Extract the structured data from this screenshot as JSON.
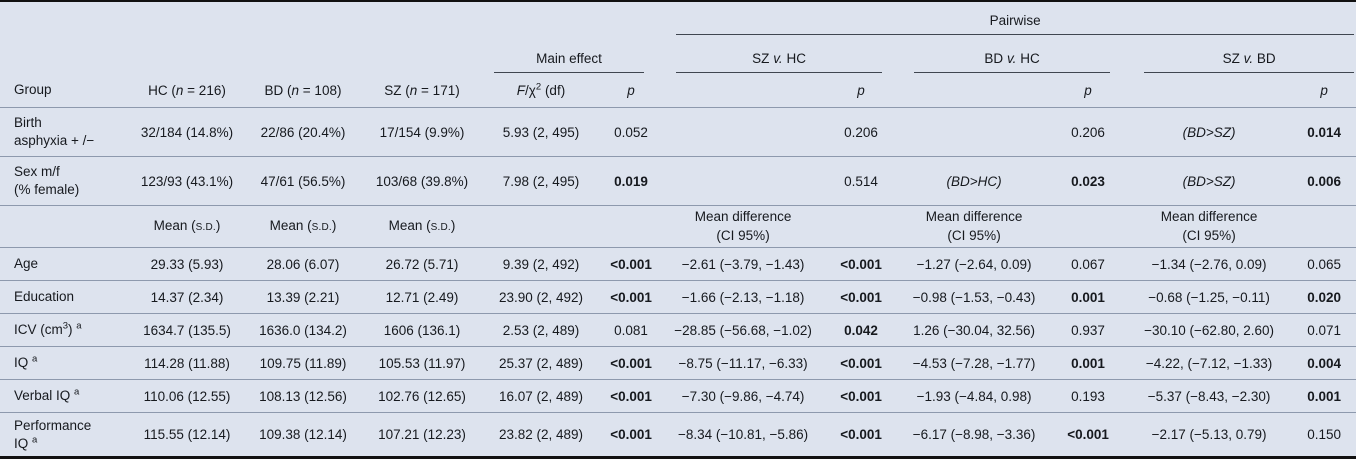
{
  "colors": {
    "table_bg": "#dde3ee",
    "row_separator": "#8d99ad",
    "heavy_rule": "#111111",
    "header_underline": "#3f4650",
    "text": "#16191e"
  },
  "header": {
    "pairwise": "Pairwise",
    "groups": [
      {
        "key": "main-effect",
        "segs": [
          "Main effect"
        ]
      },
      {
        "key": "sz-vs-hc",
        "segs": [
          "SZ ",
          {
            "t": "v.",
            "i": 1
          },
          " HC"
        ]
      },
      {
        "key": "bd-vs-hc",
        "segs": [
          "BD ",
          {
            "t": "v.",
            "i": 1
          },
          " HC"
        ]
      },
      {
        "key": "sz-vs-bd",
        "segs": [
          "SZ ",
          {
            "t": "v.",
            "i": 1
          },
          " BD"
        ]
      }
    ],
    "columns": [
      {
        "key": "group",
        "segs": [
          "Group"
        ]
      },
      {
        "key": "hc",
        "segs": [
          "HC (",
          {
            "t": "n",
            "i": 1
          },
          " = 216)"
        ]
      },
      {
        "key": "bd",
        "segs": [
          "BD (",
          {
            "t": "n",
            "i": 1
          },
          " = 108)"
        ]
      },
      {
        "key": "sz",
        "segs": [
          "SZ (",
          {
            "t": "n",
            "i": 1
          },
          " = 171)"
        ]
      },
      {
        "key": "f-chi2-df",
        "segs": [
          {
            "t": "F",
            "i": 1
          },
          "/χ",
          {
            "t": "2",
            "sup": 1
          },
          " (df)"
        ]
      },
      {
        "key": "p-main",
        "segs": [
          {
            "t": "p",
            "i": 1
          }
        ]
      },
      {
        "key": "diff-sz-hc",
        "segs": []
      },
      {
        "key": "p-sz-hc",
        "segs": [
          {
            "t": "p",
            "i": 1
          }
        ]
      },
      {
        "key": "diff-bd-hc",
        "segs": []
      },
      {
        "key": "p-bd-hc",
        "segs": [
          {
            "t": "p",
            "i": 1
          }
        ]
      },
      {
        "key": "diff-sz-bd",
        "segs": []
      },
      {
        "key": "p-sz-bd",
        "segs": [
          {
            "t": "p",
            "i": 1
          }
        ]
      }
    ]
  },
  "rows": [
    {
      "name": "birth-asphyxia",
      "cells": [
        {
          "segs": [
            "Birth",
            {
              "br": 1
            },
            "asphyxia + /−"
          ]
        },
        "32/184 (14.8%)",
        "22/86 (20.4%)",
        "17/154 (9.9%)",
        "5.93 (2, 495)",
        "0.052",
        "",
        "0.206",
        "",
        "0.206",
        {
          "segs": [
            {
              "t": "(BD>SZ)",
              "i": 1
            }
          ]
        },
        {
          "segs": [
            "0.014"
          ],
          "b": 1
        }
      ]
    },
    {
      "name": "sex",
      "cells": [
        {
          "segs": [
            "Sex m/f",
            {
              "br": 1
            },
            "(% female)"
          ]
        },
        "123/93 (43.1%)",
        "47/61 (56.5%)",
        "103/68 (39.8%)",
        "7.98 (2, 495)",
        {
          "segs": [
            "0.019"
          ],
          "b": 1
        },
        "",
        "0.514",
        {
          "segs": [
            {
              "t": "(BD>HC)",
              "i": 1
            }
          ]
        },
        {
          "segs": [
            "0.023"
          ],
          "b": 1
        },
        {
          "segs": [
            {
              "t": "(BD>SZ)",
              "i": 1
            }
          ]
        },
        {
          "segs": [
            "0.006"
          ],
          "b": 1
        }
      ]
    },
    {
      "name": "subheader",
      "type": "subhead",
      "cells": [
        "",
        {
          "segs": [
            "Mean (",
            {
              "t": "s.d.",
              "sc": 1
            },
            ")"
          ]
        },
        {
          "segs": [
            "Mean (",
            {
              "t": "s.d.",
              "sc": 1
            },
            ")"
          ]
        },
        {
          "segs": [
            "Mean (",
            {
              "t": "s.d.",
              "sc": 1
            },
            ")"
          ]
        },
        "",
        "",
        {
          "segs": [
            "Mean difference",
            {
              "br": 1
            },
            "(CI 95%)"
          ]
        },
        "",
        {
          "segs": [
            "Mean difference",
            {
              "br": 1
            },
            "(CI 95%)"
          ]
        },
        "",
        {
          "segs": [
            "Mean difference",
            {
              "br": 1
            },
            "(CI 95%)"
          ]
        },
        ""
      ]
    },
    {
      "name": "age",
      "cells": [
        {
          "segs": [
            "Age"
          ]
        },
        "29.33 (5.93)",
        "28.06 (6.07)",
        "26.72 (5.71)",
        "9.39 (2, 492)",
        {
          "segs": [
            "<0.001"
          ],
          "b": 1
        },
        "−2.61 (−3.79, −1.43)",
        {
          "segs": [
            "<0.001"
          ],
          "b": 1
        },
        "−1.27 (−2.64, 0.09)",
        "0.067",
        "−1.34 (−2.76, 0.09)",
        "0.065"
      ]
    },
    {
      "name": "education",
      "cells": [
        {
          "segs": [
            "Education"
          ]
        },
        "14.37 (2.34)",
        "13.39 (2.21)",
        "12.71 (2.49)",
        "23.90 (2, 492)",
        {
          "segs": [
            "<0.001"
          ],
          "b": 1
        },
        "−1.66 (−2.13, −1.18)",
        {
          "segs": [
            "<0.001"
          ],
          "b": 1
        },
        "−0.98 (−1.53, −0.43)",
        {
          "segs": [
            "0.001"
          ],
          "b": 1
        },
        "−0.68 (−1.25, −0.11)",
        {
          "segs": [
            "0.020"
          ],
          "b": 1
        }
      ]
    },
    {
      "name": "icv",
      "cells": [
        {
          "segs": [
            "ICV (cm",
            {
              "t": "3",
              "sup": 1
            },
            ") ",
            {
              "t": "a",
              "sup": 1
            }
          ]
        },
        "1634.7 (135.5)",
        "1636.0 (134.2)",
        "1606 (136.1)",
        "2.53 (2, 489)",
        "0.081",
        "−28.85 (−56.68, −1.02)",
        {
          "segs": [
            "0.042"
          ],
          "b": 1
        },
        "1.26 (−30.04, 32.56)",
        "0.937",
        "−30.10 (−62.80, 2.60)",
        "0.071"
      ]
    },
    {
      "name": "iq",
      "cells": [
        {
          "segs": [
            "IQ ",
            {
              "t": "a",
              "sup": 1
            }
          ]
        },
        "114.28 (11.88)",
        "109.75 (11.89)",
        "105.53 (11.97)",
        "25.37 (2, 489)",
        {
          "segs": [
            "<0.001"
          ],
          "b": 1
        },
        "−8.75 (−11.17, −6.33)",
        {
          "segs": [
            "<0.001"
          ],
          "b": 1
        },
        "−4.53 (−7.28, −1.77)",
        {
          "segs": [
            "0.001"
          ],
          "b": 1
        },
        "−4.22, (−7.12, −1.33)",
        {
          "segs": [
            "0.004"
          ],
          "b": 1
        }
      ]
    },
    {
      "name": "verbal-iq",
      "cells": [
        {
          "segs": [
            "Verbal IQ ",
            {
              "t": "a",
              "sup": 1
            }
          ]
        },
        "110.06 (12.55)",
        "108.13 (12.56)",
        "102.76 (12.65)",
        "16.07 (2, 489)",
        {
          "segs": [
            "<0.001"
          ],
          "b": 1
        },
        "−7.30 (−9.86, −4.74)",
        {
          "segs": [
            "<0.001"
          ],
          "b": 1
        },
        "−1.93 (−4.84, 0.98)",
        "0.193",
        "−5.37 (−8.43, −2.30)",
        {
          "segs": [
            "0.001"
          ],
          "b": 1
        }
      ]
    },
    {
      "name": "performance-iq",
      "cells": [
        {
          "segs": [
            "Performance",
            {
              "br": 1
            },
            "IQ ",
            {
              "t": "a",
              "sup": 1
            }
          ]
        },
        "115.55 (12.14)",
        "109.38 (12.14)",
        "107.21 (12.23)",
        "23.82 (2, 489)",
        {
          "segs": [
            "<0.001"
          ],
          "b": 1
        },
        "−8.34 (−10.81, −5.86)",
        {
          "segs": [
            "<0.001"
          ],
          "b": 1
        },
        "−6.17 (−8.98, −3.36)",
        {
          "segs": [
            "<0.001"
          ],
          "b": 1
        },
        "−2.17 (−5.13, 0.79)",
        "0.150"
      ]
    }
  ]
}
